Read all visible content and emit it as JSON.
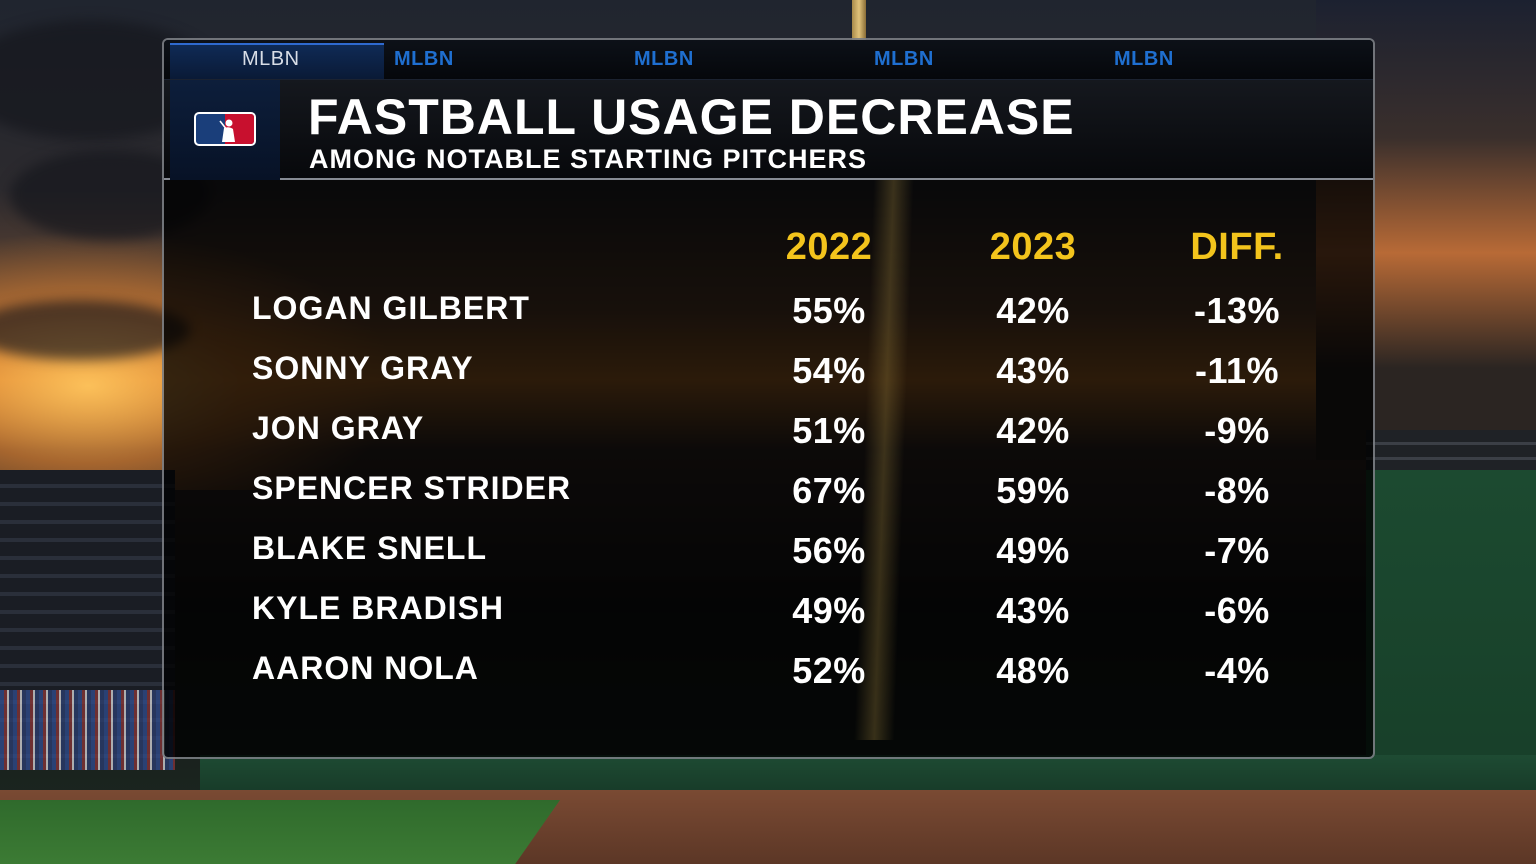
{
  "ticker": {
    "items": [
      "MLBN",
      "MLBN",
      "MLBN",
      "MLBN",
      "MLBN"
    ]
  },
  "header": {
    "title": "FASTBALL USAGE DECREASE",
    "subtitle": "AMONG NOTABLE STARTING PITCHERS",
    "logo_icon": "mlb-logo-icon"
  },
  "table": {
    "columns": [
      "2022",
      "2023",
      "DIFF."
    ],
    "rows": [
      {
        "name": "LOGAN GILBERT",
        "y2022": "55%",
        "y2023": "42%",
        "diff": "-13%"
      },
      {
        "name": "SONNY GRAY",
        "y2022": "54%",
        "y2023": "43%",
        "diff": "-11%"
      },
      {
        "name": "JON GRAY",
        "y2022": "51%",
        "y2023": "42%",
        "diff": "-9%"
      },
      {
        "name": "SPENCER STRIDER",
        "y2022": "67%",
        "y2023": "59%",
        "diff": "-8%"
      },
      {
        "name": "BLAKE SNELL",
        "y2022": "56%",
        "y2023": "49%",
        "diff": "-7%"
      },
      {
        "name": "KYLE BRADISH",
        "y2022": "49%",
        "y2023": "43%",
        "diff": "-6%"
      },
      {
        "name": "AARON NOLA",
        "y2022": "52%",
        "y2023": "48%",
        "diff": "-4%"
      }
    ]
  },
  "colors": {
    "column_header": "#f3c41c",
    "ticker_text": "#1f6fd0",
    "text": "#ffffff"
  }
}
